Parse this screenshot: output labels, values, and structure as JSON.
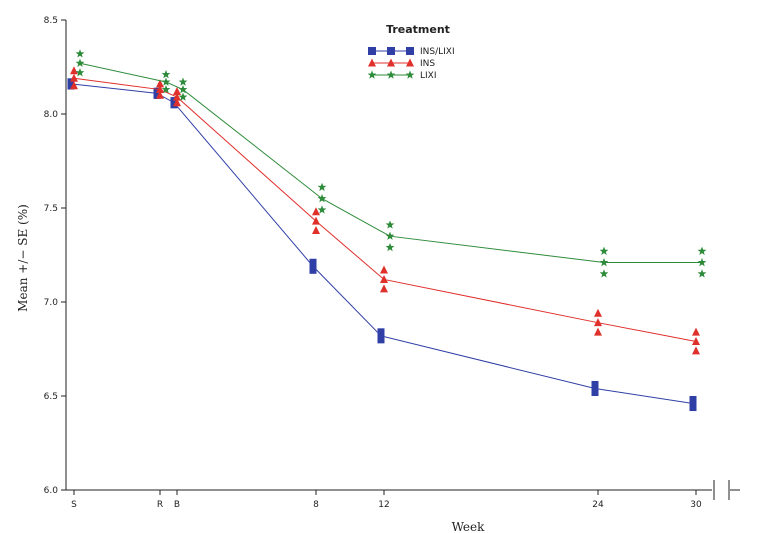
{
  "chart_data": {
    "type": "line",
    "xlabel": "Week",
    "ylabel": "Mean +/− SE (%)",
    "ylim": [
      6.0,
      8.5
    ],
    "yticks": [
      "6.0",
      "6.5",
      "7.0",
      "7.5",
      "8.0",
      "8.5"
    ],
    "x_categories": [
      "S",
      "R",
      "B",
      "8",
      "12",
      "24",
      "30"
    ],
    "grid": false,
    "legend": {
      "title": "Treatment",
      "position": "top-center"
    },
    "series": [
      {
        "name": "INS/LIXI",
        "color": "#2f3fa6",
        "marker": "square",
        "values": [
          8.16,
          8.11,
          8.06,
          7.19,
          6.82,
          6.54,
          6.46
        ],
        "se": [
          0.03,
          0.03,
          0.03,
          0.04,
          0.04,
          0.04,
          0.04
        ]
      },
      {
        "name": "INS",
        "color": "#e0302c",
        "marker": "triangle",
        "values": [
          8.19,
          8.13,
          8.09,
          7.43,
          7.12,
          6.89,
          6.79
        ],
        "se": [
          0.04,
          0.03,
          0.03,
          0.05,
          0.05,
          0.05,
          0.05
        ]
      },
      {
        "name": "LIXI",
        "color": "#2e8b3a",
        "marker": "star",
        "values": [
          8.27,
          8.17,
          8.13,
          7.55,
          7.35,
          7.21,
          7.21
        ],
        "se": [
          0.05,
          0.04,
          0.04,
          0.06,
          0.06,
          0.06,
          0.06
        ]
      }
    ]
  }
}
